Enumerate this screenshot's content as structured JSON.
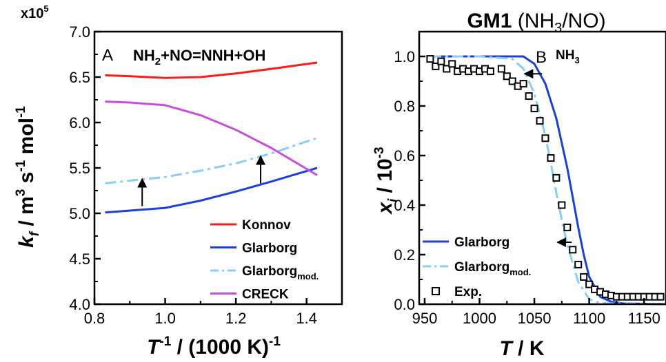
{
  "colors": {
    "konnov": "#ff1a1a",
    "glarborg": "#1a3fe0",
    "glarborg_mod": "#87cdf5",
    "creck": "#c84ce0",
    "exp": "#000000",
    "axis": "#000000"
  },
  "chart_data": [
    {
      "type": "line",
      "panel_letter": "A",
      "title": "NH2+NO=NNH+OH",
      "scale_label": "x10",
      "scale_exponent": "5",
      "xlabel": {
        "main": "T",
        "sup": "-1",
        "rest": " / (1000 K)",
        "sup2": "-1"
      },
      "ylabel": {
        "main": "k",
        "sub": "f",
        "rest1": " / m",
        "sup1": "3",
        "rest2": " s",
        "sup2": "-1",
        "rest3": " mol",
        "sup3": "-1"
      },
      "xlim": [
        0.8,
        1.5
      ],
      "ylim": [
        4.0,
        7.0
      ],
      "xticks": [
        0.8,
        1.0,
        1.2,
        1.4
      ],
      "xtick_labels": [
        "0.8",
        "1.0",
        "1.2",
        "1.4"
      ],
      "yticks": [
        4.0,
        4.5,
        5.0,
        5.5,
        6.0,
        6.5,
        7.0
      ],
      "ytick_labels": [
        "4.0",
        "4.5",
        "5.0",
        "5.5",
        "6.0",
        "6.5",
        "7.0"
      ],
      "series": [
        {
          "name": "Konnov",
          "color_key": "konnov",
          "dash": "solid",
          "x": [
            0.83,
            0.9,
            1.0,
            1.1,
            1.2,
            1.3,
            1.43
          ],
          "y": [
            6.52,
            6.51,
            6.49,
            6.5,
            6.54,
            6.59,
            6.66
          ]
        },
        {
          "name": "Glarborg",
          "color_key": "glarborg",
          "dash": "solid",
          "x": [
            0.83,
            0.9,
            1.0,
            1.1,
            1.2,
            1.3,
            1.43
          ],
          "y": [
            5.01,
            5.03,
            5.06,
            5.14,
            5.24,
            5.35,
            5.5
          ]
        },
        {
          "name": "Glarborg",
          "name_sub": "mod.",
          "color_key": "glarborg_mod",
          "dash": "dashdot",
          "x": [
            0.83,
            0.9,
            1.0,
            1.1,
            1.2,
            1.3,
            1.43
          ],
          "y": [
            5.33,
            5.36,
            5.4,
            5.47,
            5.55,
            5.66,
            5.83
          ]
        },
        {
          "name": "CRECK",
          "color_key": "creck",
          "dash": "solid",
          "x": [
            0.83,
            0.9,
            1.0,
            1.1,
            1.2,
            1.3,
            1.43
          ],
          "y": [
            6.23,
            6.22,
            6.19,
            6.08,
            5.92,
            5.72,
            5.42
          ]
        }
      ],
      "arrows": [
        {
          "x": 0.935,
          "y_from": 5.08,
          "y_to": 5.38
        },
        {
          "x": 1.27,
          "y_from": 5.33,
          "y_to": 5.63
        }
      ],
      "legend_position": "bottom-right"
    },
    {
      "type": "line",
      "panel_letter": "B",
      "title_bold": "GM1",
      "title_rest_parts": [
        "(NH",
        "3",
        "/NO)"
      ],
      "species": "NH",
      "species_sub": "3",
      "xlabel": {
        "main": "T",
        "rest": " / K"
      },
      "ylabel": {
        "main": "x",
        "sub": "i",
        "rest": " / 10",
        "sup": "-3"
      },
      "xlim": [
        945,
        1170
      ],
      "ylim": [
        0.0,
        1.1
      ],
      "xticks": [
        950,
        1000,
        1050,
        1100,
        1150
      ],
      "xtick_labels": [
        "950",
        "1000",
        "1050",
        "1100",
        "1150"
      ],
      "yticks": [
        0.0,
        0.2,
        0.4,
        0.6,
        0.8,
        1.0
      ],
      "ytick_labels": [
        "0.0",
        "0.2",
        "0.4",
        "0.6",
        "0.8",
        "1.0"
      ],
      "series": [
        {
          "name": "Glarborg",
          "color_key": "glarborg",
          "dash": "solid",
          "style": "line",
          "x": [
            955,
            1000,
            1040,
            1050,
            1060,
            1070,
            1080,
            1085,
            1090,
            1095,
            1100,
            1110,
            1120,
            1130,
            1170
          ],
          "y": [
            1.0,
            1.0,
            1.0,
            0.97,
            0.89,
            0.75,
            0.55,
            0.43,
            0.31,
            0.2,
            0.11,
            0.03,
            0.01,
            0.003,
            0.0
          ]
        },
        {
          "name": "Glarborg",
          "name_sub": "mod.",
          "color_key": "glarborg_mod",
          "dash": "dashdot",
          "style": "line",
          "x": [
            955,
            1000,
            1030,
            1040,
            1050,
            1060,
            1065,
            1070,
            1075,
            1080,
            1090,
            1100,
            1110,
            1170
          ],
          "y": [
            1.0,
            1.0,
            0.99,
            0.95,
            0.85,
            0.68,
            0.57,
            0.45,
            0.34,
            0.24,
            0.09,
            0.02,
            0.004,
            0.0
          ]
        },
        {
          "name": "Exp.",
          "color_key": "exp",
          "style": "markers",
          "x": [
            955,
            960,
            965,
            970,
            975,
            980,
            985,
            990,
            995,
            1000,
            1005,
            1010,
            1020,
            1025,
            1030,
            1035,
            1040,
            1045,
            1050,
            1055,
            1060,
            1065,
            1070,
            1075,
            1080,
            1085,
            1090,
            1095,
            1100,
            1105,
            1110,
            1115,
            1120,
            1125,
            1130,
            1135,
            1140,
            1145,
            1150,
            1155,
            1160,
            1165
          ],
          "y": [
            0.99,
            0.96,
            0.98,
            0.95,
            0.97,
            0.94,
            0.95,
            0.94,
            0.95,
            0.94,
            0.95,
            0.94,
            0.95,
            0.92,
            0.9,
            0.88,
            0.89,
            0.84,
            0.79,
            0.74,
            0.67,
            0.59,
            0.51,
            0.4,
            0.31,
            0.22,
            0.16,
            0.11,
            0.08,
            0.06,
            0.05,
            0.04,
            0.035,
            0.03,
            0.03,
            0.03,
            0.03,
            0.03,
            0.03,
            0.03,
            0.03,
            0.03
          ]
        }
      ],
      "arrows": [
        {
          "x_from": 1057,
          "x_to": 1041,
          "y": 0.93
        },
        {
          "x_from": 1084,
          "x_to": 1071,
          "y": 0.25
        }
      ],
      "legend_position": "bottom-left"
    }
  ]
}
